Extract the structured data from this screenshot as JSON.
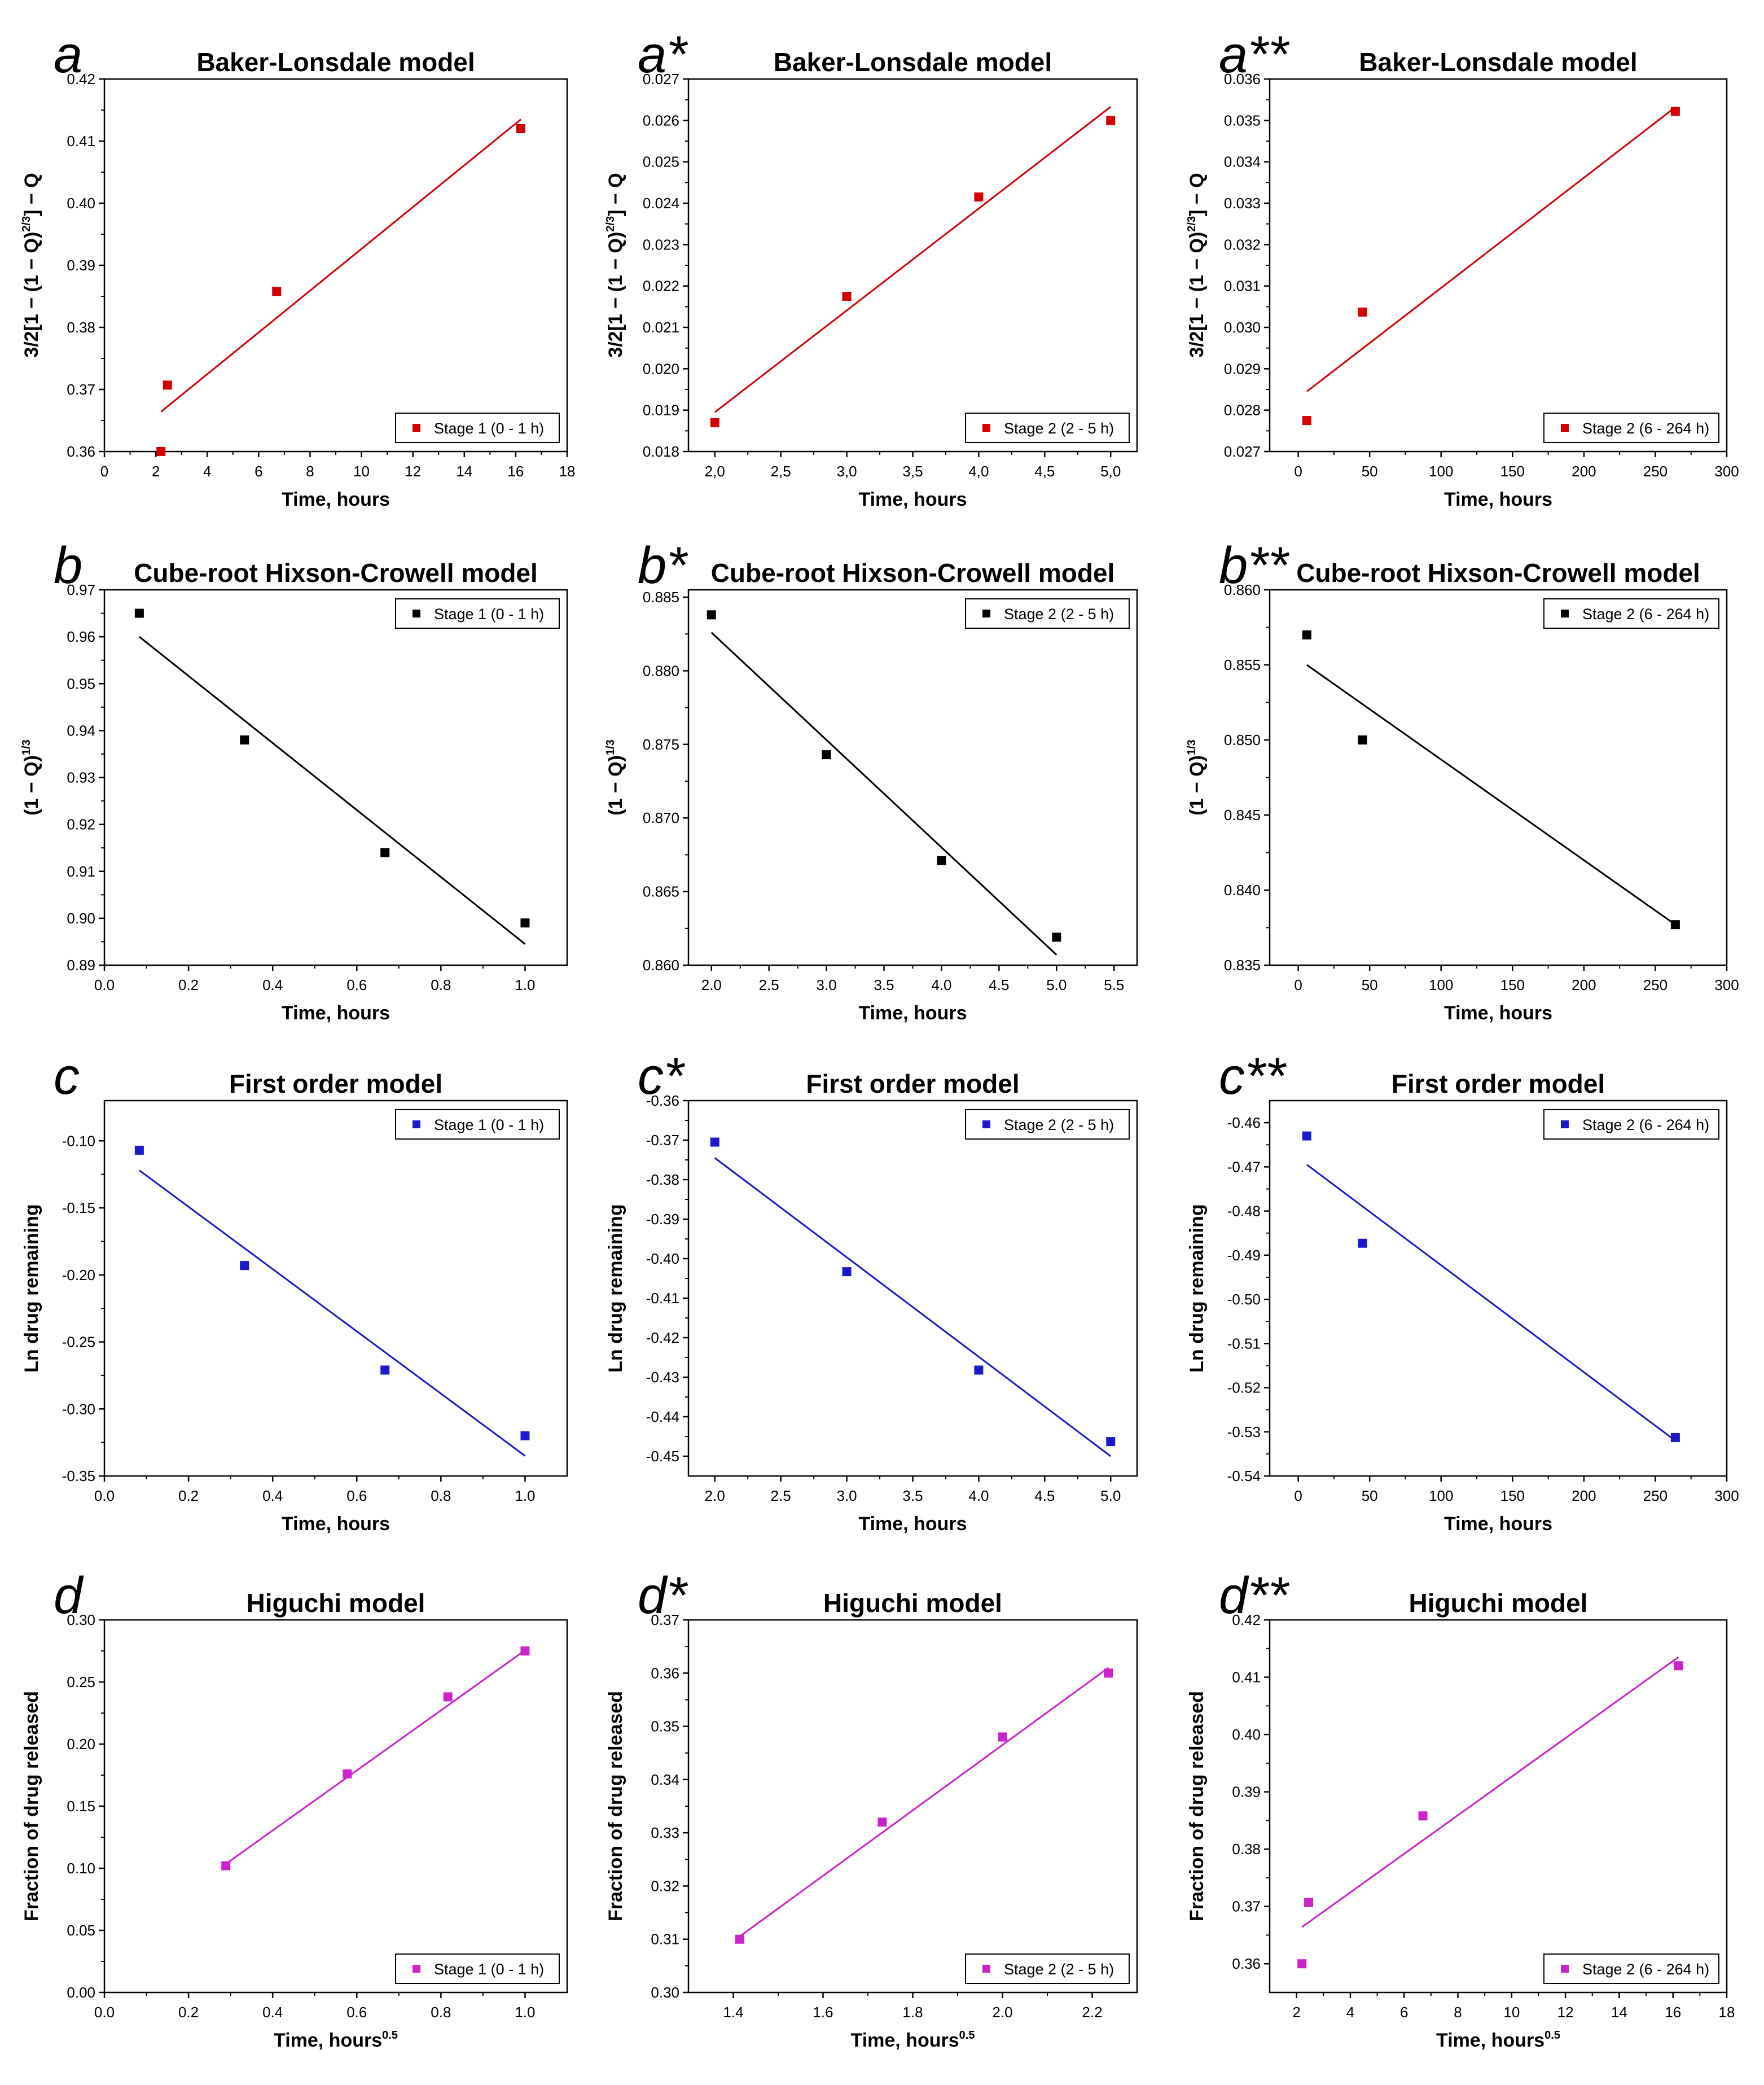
{
  "figure": {
    "rows": 4,
    "cols": 3
  },
  "chart_data": [
    {
      "panel": "a",
      "row": 0,
      "col": 0,
      "type": "scatter",
      "title": "Baker-Lonsdale model",
      "xlabel": "Time, hours",
      "ylabel": "3/2[1 − (1 − Q)2/3] − Q",
      "xlim": [
        0,
        18
      ],
      "ylim": [
        0.36,
        0.42
      ],
      "xticks": [
        0,
        2,
        4,
        6,
        8,
        10,
        12,
        14,
        16,
        18
      ],
      "yticks": [
        0.36,
        0.37,
        0.38,
        0.39,
        0.4,
        0.41,
        0.42
      ],
      "xtick_labels": [
        "0",
        "2",
        "4",
        "6",
        "8",
        "10",
        "12",
        "14",
        "16",
        "18"
      ],
      "ytick_labels": [
        "0.36",
        "0.37",
        "0.38",
        "0.39",
        "0.40",
        "0.41",
        "0.42"
      ],
      "x": [
        2.2,
        2.45,
        6.7,
        16.2
      ],
      "y": [
        0.36,
        0.3707,
        0.3858,
        0.412
      ],
      "fit": [
        [
          2.2,
          0.3664
        ],
        [
          16.2,
          0.4135
        ]
      ],
      "legend": "Stage 1 (0 - 1 h)",
      "legend_position": "bottom-right",
      "color": "#d40000"
    },
    {
      "panel": "a*",
      "row": 0,
      "col": 1,
      "type": "scatter",
      "title": "Baker-Lonsdale model",
      "xlabel": "Time, hours",
      "ylabel": "3/2[1 − (1 − Q)2/3] − Q",
      "xlim": [
        1.8,
        5.2
      ],
      "ylim": [
        0.018,
        0.027
      ],
      "xticks": [
        2.0,
        2.5,
        3.0,
        3.5,
        4.0,
        4.5,
        5.0
      ],
      "yticks": [
        0.018,
        0.019,
        0.02,
        0.021,
        0.022,
        0.023,
        0.024,
        0.025,
        0.026,
        0.027
      ],
      "xtick_labels": [
        "2,0",
        "2,5",
        "3,0",
        "3,5",
        "4,0",
        "4,5",
        "5,0"
      ],
      "ytick_labels": [
        "0.018",
        "0.019",
        "0.020",
        "0.021",
        "0.022",
        "0.023",
        "0.024",
        "0.025",
        "0.026",
        "0.027"
      ],
      "x": [
        2.0,
        3.0,
        4.0,
        5.0
      ],
      "y": [
        0.0187,
        0.02175,
        0.02415,
        0.026
      ],
      "fit": [
        [
          2.0,
          0.01895
        ],
        [
          5.0,
          0.02633
        ]
      ],
      "legend": "Stage 2 (2 - 5 h)",
      "legend_position": "bottom-right",
      "color": "#d40000"
    },
    {
      "panel": "a**",
      "row": 0,
      "col": 2,
      "type": "scatter",
      "title": "Baker-Lonsdale model",
      "xlabel": "Time, hours",
      "ylabel": "3/2[1 − (1 − Q)2/3] − Q",
      "xlim": [
        -20,
        300
      ],
      "ylim": [
        0.027,
        0.036
      ],
      "xticks": [
        0,
        50,
        100,
        150,
        200,
        250,
        300
      ],
      "yticks": [
        0.027,
        0.028,
        0.029,
        0.03,
        0.031,
        0.032,
        0.033,
        0.034,
        0.035,
        0.036
      ],
      "xtick_labels": [
        "0",
        "50",
        "100",
        "150",
        "200",
        "250",
        "300"
      ],
      "ytick_labels": [
        "0.027",
        "0.028",
        "0.029",
        "0.030",
        "0.031",
        "0.032",
        "0.033",
        "0.034",
        "0.035",
        "0.036"
      ],
      "x": [
        6,
        45,
        264
      ],
      "y": [
        0.02775,
        0.03037,
        0.03522
      ],
      "fit": [
        [
          6,
          0.02845
        ],
        [
          264,
          0.03532
        ]
      ],
      "legend": "Stage 2 (6 - 264 h)",
      "legend_position": "bottom-right",
      "color": "#d40000"
    },
    {
      "panel": "b",
      "row": 1,
      "col": 0,
      "type": "scatter",
      "title": "Cube-root Hixson-Crowell model",
      "xlabel": "Time, hours",
      "ylabel": "(1 − Q)1/3",
      "xlim": [
        0.0,
        1.1
      ],
      "ylim": [
        0.89,
        0.97
      ],
      "xticks": [
        0.0,
        0.2,
        0.4,
        0.6,
        0.8,
        1.0
      ],
      "yticks": [
        0.89,
        0.9,
        0.91,
        0.92,
        0.93,
        0.94,
        0.95,
        0.96,
        0.97
      ],
      "xtick_labels": [
        "0.0",
        "0.2",
        "0.4",
        "0.6",
        "0.8",
        "1.0"
      ],
      "ytick_labels": [
        "0.89",
        "0.90",
        "0.91",
        "0.92",
        "0.93",
        "0.94",
        "0.95",
        "0.96",
        "0.97"
      ],
      "x": [
        0.083,
        0.333,
        0.667,
        1.0
      ],
      "y": [
        0.965,
        0.938,
        0.914,
        0.899
      ],
      "fit": [
        [
          0.083,
          0.96
        ],
        [
          1.0,
          0.8945
        ]
      ],
      "legend": "Stage 1 (0 - 1 h)",
      "legend_position": "top-right",
      "color": "#000000"
    },
    {
      "panel": "b*",
      "row": 1,
      "col": 1,
      "type": "scatter",
      "title": "Cube-root Hixson-Crowell model",
      "xlabel": "Time, hours",
      "ylabel": "(1 − Q)1/3",
      "xlim": [
        1.8,
        5.7
      ],
      "ylim": [
        0.86,
        0.8855
      ],
      "xticks": [
        2.0,
        2.5,
        3.0,
        3.5,
        4.0,
        4.5,
        5.0,
        5.5
      ],
      "yticks": [
        0.86,
        0.865,
        0.87,
        0.875,
        0.88,
        0.885
      ],
      "xtick_labels": [
        "2.0",
        "2.5",
        "3.0",
        "3.5",
        "4.0",
        "4.5",
        "5.0",
        "5.5"
      ],
      "ytick_labels": [
        "0.860",
        "0.865",
        "0.870",
        "0.875",
        "0.880",
        "0.885"
      ],
      "x": [
        2.0,
        3.0,
        4.0,
        5.0
      ],
      "y": [
        0.8838,
        0.8743,
        0.8671,
        0.8619
      ],
      "fit": [
        [
          2.0,
          0.8826
        ],
        [
          5.0,
          0.8607
        ]
      ],
      "legend": "Stage 2 (2 - 5 h)",
      "legend_position": "top-right",
      "color": "#000000"
    },
    {
      "panel": "b**",
      "row": 1,
      "col": 2,
      "type": "scatter",
      "title": "Cube-root Hixson-Crowell model",
      "xlabel": "Time, hours",
      "ylabel": "(1 − Q)1/3",
      "xlim": [
        -20,
        300
      ],
      "ylim": [
        0.835,
        0.86
      ],
      "xticks": [
        0,
        50,
        100,
        150,
        200,
        250,
        300
      ],
      "yticks": [
        0.835,
        0.84,
        0.845,
        0.85,
        0.855,
        0.86
      ],
      "xtick_labels": [
        "0",
        "50",
        "100",
        "150",
        "200",
        "250",
        "300"
      ],
      "ytick_labels": [
        "0.835",
        "0.840",
        "0.845",
        "0.850",
        "0.855",
        "0.860"
      ],
      "x": [
        6,
        45,
        264
      ],
      "y": [
        0.857,
        0.85,
        0.8377
      ],
      "fit": [
        [
          6,
          0.855
        ],
        [
          264,
          0.8377
        ]
      ],
      "legend": "Stage 2 (6 - 264 h)",
      "legend_position": "top-right",
      "color": "#000000"
    },
    {
      "panel": "c",
      "row": 2,
      "col": 0,
      "type": "scatter",
      "title": "First order model",
      "xlabel": "Time, hours",
      "ylabel": "Ln drug remaining",
      "xlim": [
        0.0,
        1.1
      ],
      "ylim": [
        -0.35,
        -0.07
      ],
      "xticks": [
        0.0,
        0.2,
        0.4,
        0.6,
        0.8,
        1.0
      ],
      "yticks": [
        -0.35,
        -0.3,
        -0.25,
        -0.2,
        -0.15,
        -0.1
      ],
      "xtick_labels": [
        "0.0",
        "0.2",
        "0.4",
        "0.6",
        "0.8",
        "1.0"
      ],
      "ytick_labels": [
        "-0.35",
        "-0.30",
        "-0.25",
        "-0.20",
        "-0.15",
        "-0.10"
      ],
      "x": [
        0.083,
        0.333,
        0.667,
        1.0
      ],
      "y": [
        -0.107,
        -0.193,
        -0.271,
        -0.32
      ],
      "fit": [
        [
          0.083,
          -0.122
        ],
        [
          1.0,
          -0.335
        ]
      ],
      "legend": "Stage 1 (0 - 1 h)",
      "legend_position": "top-right",
      "color": "#1a1acc"
    },
    {
      "panel": "c*",
      "row": 2,
      "col": 1,
      "type": "scatter",
      "title": "First order model",
      "xlabel": "Time, hours",
      "ylabel": "Ln drug remaining",
      "xlim": [
        1.8,
        5.2
      ],
      "ylim": [
        -0.455,
        -0.36
      ],
      "xticks": [
        2.0,
        2.5,
        3.0,
        3.5,
        4.0,
        4.5,
        5.0
      ],
      "yticks": [
        -0.45,
        -0.44,
        -0.43,
        -0.42,
        -0.41,
        -0.4,
        -0.39,
        -0.38,
        -0.37,
        -0.36
      ],
      "xtick_labels": [
        "2.0",
        "2.5",
        "3.0",
        "3.5",
        "4.0",
        "4.5",
        "5.0"
      ],
      "ytick_labels": [
        "-0.45",
        "-0.44",
        "-0.43",
        "-0.42",
        "-0.41",
        "-0.40",
        "-0.39",
        "-0.38",
        "-0.37",
        "-0.36"
      ],
      "x": [
        2.0,
        3.0,
        4.0,
        5.0
      ],
      "y": [
        -0.3705,
        -0.4033,
        -0.4282,
        -0.4463
      ],
      "fit": [
        [
          2.0,
          -0.3745
        ],
        [
          5.0,
          -0.45
        ]
      ],
      "legend": "Stage 2 (2 - 5 h)",
      "legend_position": "top-right",
      "color": "#1a1acc"
    },
    {
      "panel": "c**",
      "row": 2,
      "col": 2,
      "type": "scatter",
      "title": "First order model",
      "xlabel": "Time, hours",
      "ylabel": "Ln drug remaining",
      "xlim": [
        -20,
        300
      ],
      "ylim": [
        -0.54,
        -0.455
      ],
      "xticks": [
        0,
        50,
        100,
        150,
        200,
        250,
        300
      ],
      "yticks": [
        -0.54,
        -0.53,
        -0.52,
        -0.51,
        -0.5,
        -0.49,
        -0.48,
        -0.47,
        -0.46
      ],
      "xtick_labels": [
        "0",
        "50",
        "100",
        "150",
        "200",
        "250",
        "300"
      ],
      "ytick_labels": [
        "-0.54",
        "-0.53",
        "-0.52",
        "-0.51",
        "-0.50",
        "-0.49",
        "-0.48",
        "-0.47",
        "-0.46"
      ],
      "x": [
        6,
        45,
        264
      ],
      "y": [
        -0.463,
        -0.4873,
        -0.5313
      ],
      "fit": [
        [
          6,
          -0.4695
        ],
        [
          264,
          -0.532
        ]
      ],
      "legend": "Stage 2 (6 - 264 h)",
      "legend_position": "top-right",
      "color": "#1a1acc"
    },
    {
      "panel": "d",
      "row": 3,
      "col": 0,
      "type": "scatter",
      "title": "Higuchi model",
      "xlabel": "Time, hours0.5",
      "ylabel": "Fraction of drug released",
      "xlim": [
        0.0,
        1.1
      ],
      "ylim": [
        0.0,
        0.3
      ],
      "xticks": [
        0.0,
        0.2,
        0.4,
        0.6,
        0.8,
        1.0
      ],
      "yticks": [
        0.0,
        0.05,
        0.1,
        0.15,
        0.2,
        0.25,
        0.3
      ],
      "xtick_labels": [
        "0.0",
        "0.2",
        "0.4",
        "0.6",
        "0.8",
        "1.0"
      ],
      "ytick_labels": [
        "0.00",
        "0.05",
        "0.10",
        "0.15",
        "0.20",
        "0.25",
        "0.30"
      ],
      "x": [
        0.2887,
        0.5774,
        0.8165,
        1.0
      ],
      "y": [
        0.102,
        0.176,
        0.238,
        0.275
      ],
      "fit": [
        [
          0.2887,
          0.1035
        ],
        [
          1.0,
          0.2755
        ]
      ],
      "legend": "Stage 1 (0 - 1 h)",
      "legend_position": "bottom-right",
      "color": "#cc22cc"
    },
    {
      "panel": "d*",
      "row": 3,
      "col": 1,
      "type": "scatter",
      "title": "Higuchi model",
      "xlabel": "Time, hours0.5",
      "ylabel": "Fraction of drug released",
      "xlim": [
        1.3,
        2.3
      ],
      "ylim": [
        0.3,
        0.37
      ],
      "xticks": [
        1.4,
        1.6,
        1.8,
        2.0,
        2.2
      ],
      "yticks": [
        0.3,
        0.31,
        0.32,
        0.33,
        0.34,
        0.35,
        0.36,
        0.37
      ],
      "xtick_labels": [
        "1.4",
        "1.6",
        "1.8",
        "2.0",
        "2.2"
      ],
      "ytick_labels": [
        "0.30",
        "0.31",
        "0.32",
        "0.33",
        "0.34",
        "0.35",
        "0.36",
        "0.37"
      ],
      "x": [
        1.414,
        1.732,
        2.0,
        2.236
      ],
      "y": [
        0.31,
        0.332,
        0.348,
        0.36
      ],
      "fit": [
        [
          1.414,
          0.3105
        ],
        [
          2.236,
          0.361
        ]
      ],
      "legend": "Stage 2 (2 - 5 h)",
      "legend_position": "bottom-right",
      "color": "#cc22cc"
    },
    {
      "panel": "d**",
      "row": 3,
      "col": 2,
      "type": "scatter",
      "title": "Higuchi model",
      "xlabel": "Time, hours0.5",
      "ylabel": "Fraction of drug released",
      "xlim": [
        1,
        18
      ],
      "ylim": [
        0.355,
        0.42
      ],
      "xticks": [
        2,
        4,
        6,
        8,
        10,
        12,
        14,
        16,
        18
      ],
      "yticks": [
        0.36,
        0.37,
        0.38,
        0.39,
        0.4,
        0.41,
        0.42
      ],
      "xtick_labels": [
        "2",
        "4",
        "6",
        "8",
        "10",
        "12",
        "14",
        "16",
        "18"
      ],
      "ytick_labels": [
        "0.36",
        "0.37",
        "0.38",
        "0.39",
        "0.40",
        "0.41",
        "0.42"
      ],
      "x": [
        2.2,
        2.45,
        6.7,
        16.2
      ],
      "y": [
        0.36,
        0.3707,
        0.3858,
        0.412
      ],
      "fit": [
        [
          2.2,
          0.3664
        ],
        [
          16.2,
          0.4135
        ]
      ],
      "legend": "Stage 2 (6 - 264 h)",
      "legend_position": "bottom-right",
      "color": "#cc22cc"
    }
  ]
}
